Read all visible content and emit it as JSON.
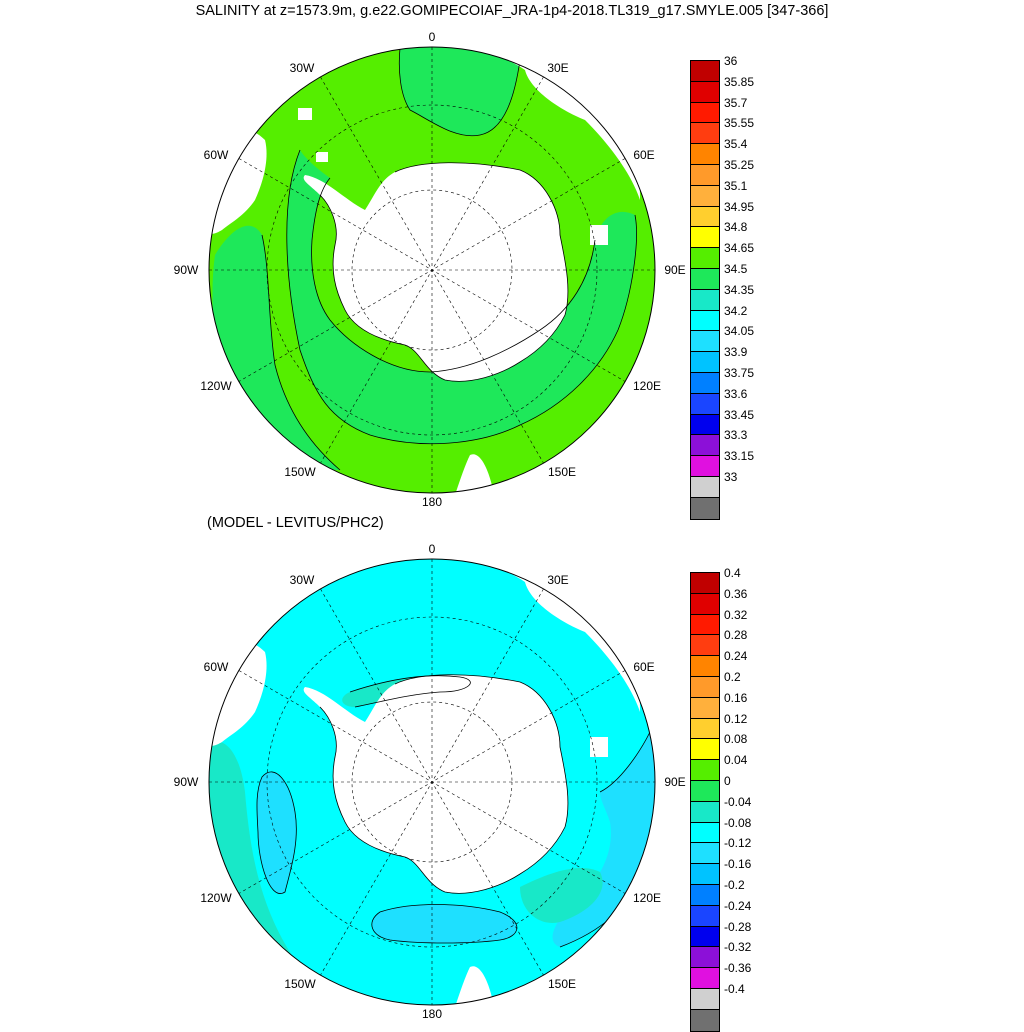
{
  "figure": {
    "title": "SALINITY at z=1573.9m, g.e22.GOMIPECOIAF_JRA-1p4-2018.TL319_g17.SMYLE.005 [347-366]",
    "subtitle": "(MODEL - LEVITUS/PHC2)"
  },
  "map_labels": {
    "lon_0": "0",
    "lon_30w": "30W",
    "lon_30e": "30E",
    "lon_60w": "60W",
    "lon_60e": "60E",
    "lon_90w": "90W",
    "lon_90e": "90E",
    "lon_120w": "120W",
    "lon_120e": "120E",
    "lon_150w": "150W",
    "lon_150e": "150E",
    "lon_180": "180"
  },
  "colorbars": {
    "salinity": {
      "labels": [
        "36",
        "35.85",
        "35.7",
        "35.55",
        "35.4",
        "35.25",
        "35.1",
        "34.95",
        "34.8",
        "34.65",
        "34.5",
        "34.35",
        "34.2",
        "34.05",
        "33.9",
        "33.75",
        "33.6",
        "33.45",
        "33.3",
        "33.15",
        "33"
      ],
      "colors": [
        "#c00000",
        "#e00000",
        "#ff1a00",
        "#ff3d10",
        "#ff8400",
        "#ff9a2a",
        "#ffb03c",
        "#ffcf2e",
        "#ffff00",
        "#55ee00",
        "#1ee85a",
        "#18e8c8",
        "#00ffff",
        "#1ee0ff",
        "#00c3ff",
        "#0080ff",
        "#1a45ff",
        "#0000ee",
        "#8c10d8",
        "#e010e0",
        "#d0d0d0",
        "#707070"
      ]
    },
    "difference": {
      "labels": [
        "0.4",
        "0.36",
        "0.32",
        "0.28",
        "0.24",
        "0.2",
        "0.16",
        "0.12",
        "0.08",
        "0.04",
        "0",
        "-0.04",
        "-0.08",
        "-0.12",
        "-0.16",
        "-0.2",
        "-0.24",
        "-0.28",
        "-0.32",
        "-0.36",
        "-0.4"
      ],
      "colors": [
        "#c00000",
        "#e00000",
        "#ff1a00",
        "#ff3d10",
        "#ff8400",
        "#ff9a2a",
        "#ffb03c",
        "#ffcf2e",
        "#ffff00",
        "#55ee00",
        "#1ee85a",
        "#18e8c8",
        "#00ffff",
        "#1ee0ff",
        "#00c3ff",
        "#0080ff",
        "#1a45ff",
        "#0000ee",
        "#8c10d8",
        "#e010e0",
        "#d0d0d0",
        "#707070"
      ]
    }
  },
  "fields": {
    "top_background_color": "#55ee00",
    "top_inner_band_color": "#1ee85a",
    "bottom_background_color": "#00ffff",
    "bottom_shade_color": "#1ee0ff",
    "bottom_alt_color": "#18e8c8",
    "land_color": "#ffffff"
  }
}
